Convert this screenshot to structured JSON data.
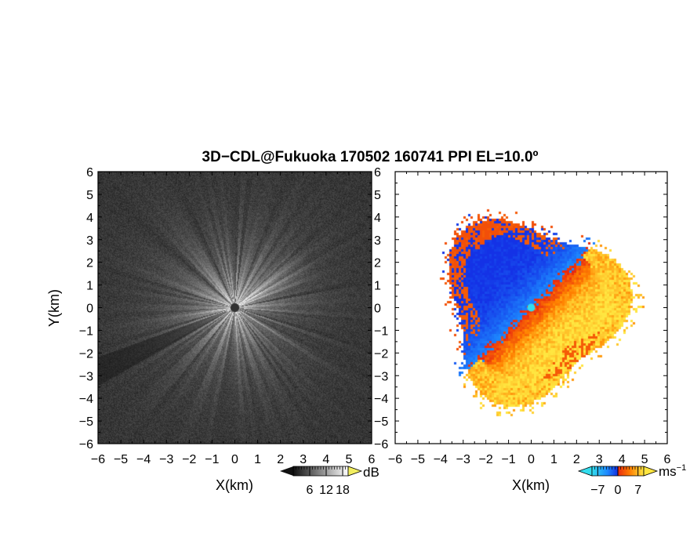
{
  "title": "3D−CDL@Fukuoka 170502 160741 PPI EL=10.0º",
  "chart_data": [
    {
      "type": "heatmap",
      "panel": "snr",
      "xlabel": "X(km)",
      "ylabel": "Y(km)",
      "xlim": [
        -6,
        6
      ],
      "ylim": [
        -6,
        6
      ],
      "xticks": [
        "−6",
        "−5",
        "−4",
        "−3",
        "−2",
        "−1",
        "0",
        "1",
        "2",
        "3",
        "4",
        "5",
        "6"
      ],
      "yticks": [
        "6",
        "5",
        "4",
        "3",
        "2",
        "1",
        "0",
        "−1",
        "−2",
        "−3",
        "−4",
        "−5",
        "−6"
      ],
      "colorbar": {
        "unit": "dB",
        "ticks": [
          "6",
          "12",
          "18"
        ],
        "tick_values": [
          6,
          12,
          18
        ],
        "range": [
          0,
          20
        ],
        "colormap": "grayscale",
        "colors": [
          "#111111",
          "#ffffff"
        ]
      },
      "description_values": {
        "noise_level_db": 2,
        "center_peak_db": 20,
        "center_dot_radius_km": 0.2
      }
    },
    {
      "type": "heatmap",
      "panel": "doppler",
      "xlabel": "X(km)",
      "ylabel": "",
      "xlim": [
        -6,
        6
      ],
      "ylim": [
        -6,
        6
      ],
      "xticks": [
        "−6",
        "−5",
        "−4",
        "−3",
        "−2",
        "−1",
        "0",
        "1",
        "2",
        "3",
        "4",
        "5",
        "6"
      ],
      "yticks": [
        "6",
        "5",
        "4",
        "3",
        "2",
        "1",
        "0",
        "−1",
        "−2",
        "−3",
        "−4",
        "−5",
        "−6"
      ],
      "colorbar": {
        "unit": "ms",
        "unit_exp": "−1",
        "ticks": [
          "−7",
          "0",
          "7"
        ],
        "tick_values": [
          -7,
          0,
          7
        ],
        "range": [
          -9,
          9
        ],
        "colors": [
          "#33ddee",
          "#1e88ff",
          "#1530e0",
          "#e82a10",
          "#ff7a00",
          "#ffe640"
        ]
      },
      "data_extent_km": 4.5,
      "wind_direction": "from northwest (negative velocities toward upper-left, positive toward lower-right)"
    }
  ]
}
